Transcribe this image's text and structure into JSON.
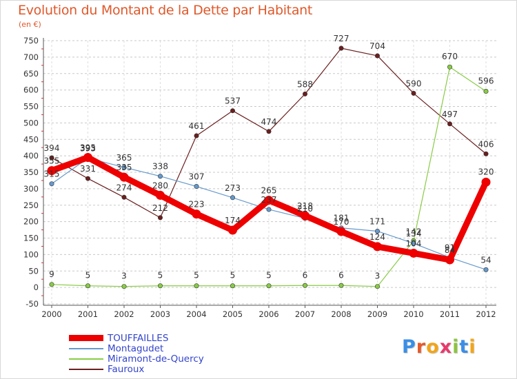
{
  "chart_data": {
    "type": "line",
    "title": "Evolution du Montant de la Dette par Habitant",
    "subtitle": "(en €)",
    "xlabel": "",
    "ylabel": "",
    "x": [
      "2000",
      "2001",
      "2002",
      "2003",
      "2004",
      "2005",
      "2006",
      "2007",
      "2008",
      "2009",
      "2010",
      "2011",
      "2012"
    ],
    "ylim": [
      -50,
      750
    ],
    "yticks": [
      -50,
      0,
      50,
      100,
      150,
      200,
      250,
      300,
      350,
      400,
      450,
      500,
      550,
      600,
      650,
      700,
      750
    ],
    "ytick_labels": [
      "-50",
      "0",
      "50",
      "100",
      "150",
      "200",
      "250",
      "300",
      "350",
      "400",
      "450",
      "500",
      "550",
      "600",
      "650",
      "700",
      "750"
    ],
    "grid": "horizontal dashed",
    "legend_position": "bottom-left",
    "series": [
      {
        "name": "Fauroux",
        "color": "#6b1e1e",
        "values": [
          394,
          331,
          274,
          212,
          461,
          537,
          474,
          588,
          727,
          704,
          590,
          497,
          406
        ],
        "labels": [
          "394",
          "331",
          "274",
          "212",
          "461",
          "537",
          "474",
          "588",
          "727",
          "704",
          "590",
          "497",
          "406"
        ]
      },
      {
        "name": "Miramont-de-Quercy",
        "color": "#88cc44",
        "values": [
          9,
          5,
          3,
          5,
          5,
          5,
          5,
          6,
          6,
          3,
          142,
          670,
          596
        ],
        "labels": [
          "9",
          "5",
          "3",
          "5",
          "5",
          "5",
          "5",
          "6",
          "6",
          "3",
          "142",
          "670",
          "596"
        ]
      },
      {
        "name": "Montagudet",
        "color": "#6699cc",
        "values": [
          315,
          393,
          365,
          338,
          307,
          273,
          237,
          210,
          181,
          171,
          134,
          91,
          54
        ],
        "labels": [
          "315",
          "393",
          "365",
          "338",
          "307",
          "273",
          "237",
          "210",
          "181",
          "171",
          "134",
          "91",
          "54"
        ]
      },
      {
        "name": "TOUFFAILLES",
        "color": "#ee0000",
        "values": [
          355,
          395,
          335,
          280,
          223,
          174,
          265,
          218,
          170,
          124,
          104,
          84,
          320
        ],
        "labels": [
          "355",
          "395",
          "335",
          "280",
          "223",
          "174",
          "265",
          "218",
          "170",
          "124",
          "104",
          "84",
          "320"
        ]
      }
    ]
  },
  "legend": {
    "items": [
      {
        "name": "TOUFFAILLES",
        "color": "#ee0000"
      },
      {
        "name": "Montagudet",
        "color": "#6699cc"
      },
      {
        "name": "Miramont-de-Quercy",
        "color": "#88cc44"
      },
      {
        "name": "Fauroux",
        "color": "#6b1e1e"
      }
    ]
  },
  "logo": {
    "letters": [
      "P",
      "r",
      "o",
      "x",
      "i",
      "t",
      "i"
    ],
    "colors": [
      "#3a8ee6",
      "#e65a2b",
      "#f2a51a",
      "#e63a6b",
      "#8bc53f",
      "#3a8ee6",
      "#f2a51a"
    ]
  }
}
